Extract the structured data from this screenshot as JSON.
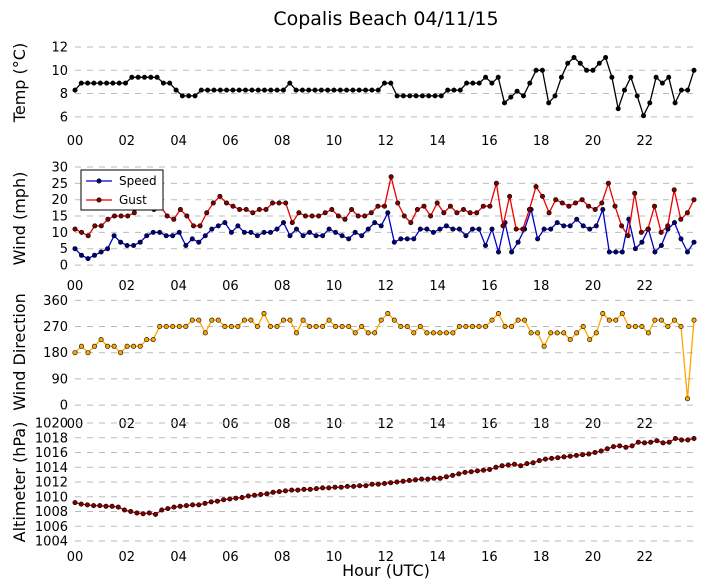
{
  "figure": {
    "title": "Copalis Beach 04/11/15",
    "xlabel": "Hour (UTC)"
  },
  "chart_data": [
    {
      "type": "line",
      "id": "temp",
      "ylabel": "Temp (°C)",
      "ylim": [
        5.3,
        12.6
      ],
      "yticks": [
        6,
        8,
        10,
        12
      ],
      "xlim": [
        0,
        23.9
      ],
      "xticks": [
        "00",
        "02",
        "04",
        "06",
        "08",
        "10",
        "12",
        "14",
        "16",
        "18",
        "20",
        "22"
      ],
      "series": [
        {
          "name": "Temperature",
          "color": "#000000",
          "marker_fill": "#000000",
          "values": [
            8.3,
            8.9,
            8.9,
            8.9,
            8.9,
            8.9,
            8.9,
            8.9,
            8.9,
            9.4,
            9.4,
            9.4,
            9.4,
            9.4,
            8.9,
            8.9,
            8.3,
            7.8,
            7.8,
            7.8,
            8.3,
            8.3,
            8.3,
            8.3,
            8.3,
            8.3,
            8.3,
            8.3,
            8.3,
            8.3,
            8.3,
            8.3,
            8.3,
            8.3,
            8.9,
            8.3,
            8.3,
            8.3,
            8.3,
            8.3,
            8.3,
            8.3,
            8.3,
            8.3,
            8.3,
            8.3,
            8.3,
            8.3,
            8.3,
            8.9,
            8.9,
            7.8,
            7.8,
            7.8,
            7.8,
            7.8,
            7.8,
            7.8,
            7.8,
            8.3,
            8.3,
            8.3,
            8.9,
            8.9,
            8.9,
            9.4,
            8.9,
            9.4,
            7.2,
            7.7,
            8.2,
            7.8,
            8.9,
            10.0,
            10.0,
            7.2,
            7.8,
            9.4,
            10.6,
            11.1,
            10.6,
            10.0,
            10.0,
            10.6,
            11.1,
            9.4,
            6.7,
            8.3,
            9.4,
            7.8,
            6.1,
            7.2,
            9.4,
            8.9,
            9.4,
            7.2,
            8.3,
            8.3,
            10.0
          ]
        }
      ]
    },
    {
      "type": "line",
      "id": "wind",
      "ylabel": "Wind (mph)",
      "ylim": [
        -1.5,
        30
      ],
      "yticks": [
        0,
        5,
        10,
        15,
        20,
        25,
        30
      ],
      "xlim": [
        0,
        23.9
      ],
      "xticks": [
        "00",
        "02",
        "04",
        "06",
        "08",
        "10",
        "12",
        "14",
        "16",
        "18",
        "20",
        "22"
      ],
      "legend": "top-left",
      "series": [
        {
          "name": "Speed",
          "color": "#0000cc",
          "marker_fill": "#000080",
          "values": [
            5,
            3,
            2,
            3,
            4,
            5,
            9,
            7,
            6,
            6,
            7,
            9,
            10,
            10,
            9,
            9,
            10,
            6,
            8,
            7,
            9,
            11,
            12,
            13,
            10,
            12,
            10,
            10,
            9,
            10,
            10,
            11,
            13,
            9,
            11,
            9,
            10,
            9,
            9,
            11,
            10,
            9,
            8,
            10,
            9,
            11,
            13,
            12,
            16,
            7,
            8,
            8,
            8,
            11,
            11,
            10,
            11,
            12,
            11,
            11,
            9,
            11,
            11,
            6,
            11,
            4,
            13,
            4,
            7,
            11,
            17,
            8,
            11,
            11,
            13,
            12,
            12,
            14,
            12,
            11,
            12,
            17,
            4,
            4,
            4,
            14,
            5,
            7,
            11,
            4,
            6,
            11,
            13,
            8,
            4,
            7
          ]
        },
        {
          "name": "Gust",
          "color": "#ee0000",
          "marker_fill": "#800000",
          "values": [
            11,
            10,
            9,
            12,
            12,
            14,
            15,
            15,
            15,
            16,
            19,
            20,
            17,
            18,
            15,
            14,
            17,
            15,
            12,
            12,
            16,
            19,
            21,
            19,
            18,
            17,
            17,
            16,
            17,
            17,
            19,
            19,
            19,
            13,
            16,
            15,
            15,
            15,
            16,
            17,
            15,
            14,
            17,
            15,
            15,
            16,
            18,
            18,
            27,
            19,
            15,
            13,
            17,
            18,
            15,
            19,
            16,
            18,
            16,
            17,
            16,
            16,
            18,
            18,
            25,
            12,
            21,
            11,
            11,
            17,
            24,
            21,
            16,
            20,
            19,
            18,
            19,
            20,
            18,
            17,
            19,
            25,
            18,
            12,
            9,
            22,
            10,
            11,
            18,
            10,
            12,
            23,
            14,
            16,
            20
          ]
        }
      ]
    },
    {
      "type": "line",
      "id": "direction",
      "ylabel": "Wind Direction",
      "ylim": [
        -10,
        375
      ],
      "yticks": [
        0,
        90,
        180,
        270,
        360
      ],
      "xlim": [
        0,
        23.9
      ],
      "xticks": [
        "00",
        "02",
        "04",
        "06",
        "08",
        "10",
        "12",
        "14",
        "16",
        "18",
        "20",
        "22"
      ],
      "series": [
        {
          "name": "Direction",
          "color": "#ffa500",
          "marker_fill": "#ffa500",
          "values": [
            180,
            202,
            180,
            202,
            225,
            202,
            202,
            180,
            202,
            202,
            202,
            225,
            225,
            270,
            270,
            270,
            270,
            270,
            292,
            292,
            248,
            292,
            292,
            270,
            270,
            270,
            292,
            292,
            270,
            315,
            270,
            270,
            292,
            292,
            248,
            292,
            270,
            270,
            270,
            292,
            270,
            270,
            270,
            248,
            270,
            248,
            248,
            292,
            315,
            292,
            270,
            270,
            248,
            270,
            248,
            248,
            248,
            248,
            248,
            270,
            270,
            270,
            270,
            270,
            292,
            315,
            270,
            270,
            292,
            292,
            248,
            248,
            202,
            248,
            248,
            248,
            225,
            248,
            270,
            225,
            248,
            315,
            292,
            292,
            315,
            270,
            270,
            270,
            248,
            292,
            292,
            270,
            292,
            270,
            22,
            292
          ]
        }
      ]
    },
    {
      "type": "line",
      "id": "altimeter",
      "ylabel": "Altimeter (hPa)",
      "ylim": [
        1004,
        1020
      ],
      "yticks": [
        1004,
        1006,
        1008,
        1010,
        1012,
        1014,
        1016,
        1018,
        1020
      ],
      "xlim": [
        0,
        23.9
      ],
      "xticks": [
        "00",
        "02",
        "04",
        "06",
        "08",
        "10",
        "12",
        "14",
        "16",
        "18",
        "20",
        "22"
      ],
      "series": [
        {
          "name": "Altimeter",
          "color": "#cc0000",
          "marker_fill": "#800000",
          "values": [
            1009.2,
            1009.0,
            1008.9,
            1008.8,
            1008.8,
            1008.7,
            1008.7,
            1008.6,
            1008.2,
            1008.0,
            1007.8,
            1007.7,
            1007.8,
            1007.6,
            1008.2,
            1008.4,
            1008.6,
            1008.7,
            1008.8,
            1008.9,
            1008.9,
            1009.1,
            1009.3,
            1009.4,
            1009.6,
            1009.7,
            1009.8,
            1009.9,
            1010.1,
            1010.2,
            1010.3,
            1010.4,
            1010.6,
            1010.7,
            1010.8,
            1010.9,
            1010.9,
            1011.0,
            1011.0,
            1011.1,
            1011.2,
            1011.2,
            1011.3,
            1011.3,
            1011.4,
            1011.4,
            1011.5,
            1011.5,
            1011.7,
            1011.7,
            1011.8,
            1011.9,
            1012.0,
            1012.1,
            1012.2,
            1012.3,
            1012.4,
            1012.4,
            1012.5,
            1012.5,
            1012.7,
            1012.9,
            1013.1,
            1013.3,
            1013.4,
            1013.5,
            1013.6,
            1013.7,
            1014.0,
            1014.2,
            1014.3,
            1014.4,
            1014.2,
            1014.5,
            1014.6,
            1014.9,
            1015.1,
            1015.2,
            1015.3,
            1015.4,
            1015.5,
            1015.6,
            1015.7,
            1015.8,
            1016.0,
            1016.2,
            1016.5,
            1016.8,
            1016.9,
            1016.7,
            1016.9,
            1017.4,
            1017.3,
            1017.4,
            1017.6,
            1017.3,
            1017.4,
            1017.9,
            1017.7,
            1017.7,
            1017.9
          ]
        }
      ]
    }
  ]
}
